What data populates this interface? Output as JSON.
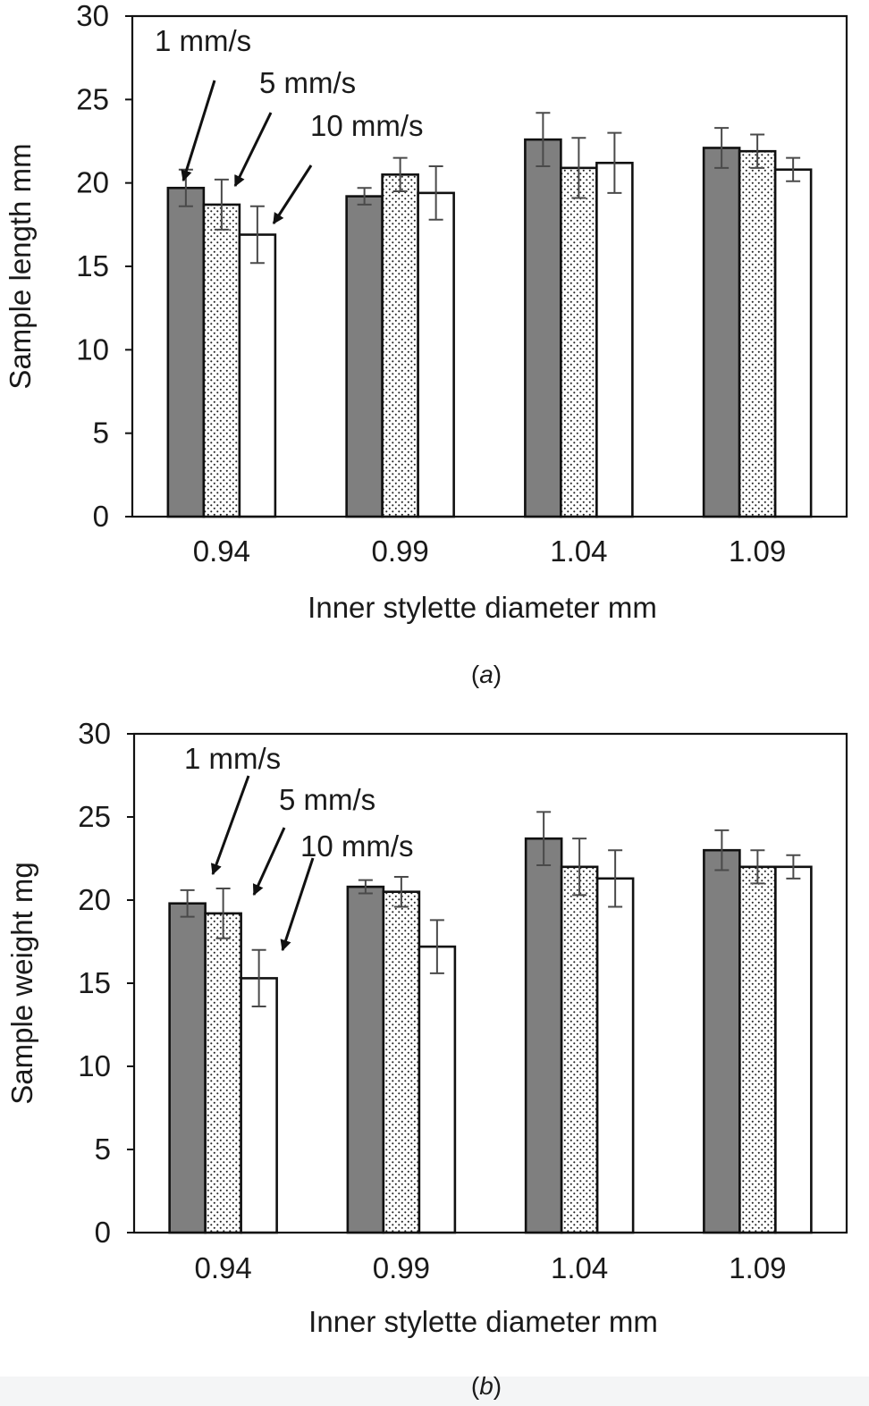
{
  "chart_data": [
    {
      "type": "bar",
      "panel_label": "a",
      "categories": [
        "0.94",
        "0.99",
        "1.04",
        "1.09"
      ],
      "series": [
        {
          "name": "1 mm/s",
          "values": [
            19.7,
            19.2,
            22.6,
            22.1
          ],
          "errors": [
            1.1,
            0.5,
            1.6,
            1.2
          ],
          "fill": "dark-gray"
        },
        {
          "name": "5 mm/s",
          "values": [
            18.7,
            20.5,
            20.9,
            21.9
          ],
          "errors": [
            1.5,
            1.0,
            1.8,
            1.0
          ],
          "fill": "dotted"
        },
        {
          "name": "10 mm/s",
          "values": [
            16.9,
            19.4,
            21.2,
            20.8
          ],
          "errors": [
            1.7,
            1.6,
            1.8,
            0.7
          ],
          "fill": "white"
        }
      ],
      "xlabel": "Inner stylette diameter   mm",
      "ylabel": "Sample length   mm",
      "ylim": [
        0,
        30
      ],
      "yticks": [
        "0",
        "5",
        "10",
        "15",
        "20",
        "25",
        "30"
      ],
      "grid": false,
      "annotations": [
        "1 mm/s",
        "5 mm/s",
        "10 mm/s"
      ]
    },
    {
      "type": "bar",
      "panel_label": "b",
      "categories": [
        "0.94",
        "0.99",
        "1.04",
        "1.09"
      ],
      "series": [
        {
          "name": "1 mm/s",
          "values": [
            19.8,
            20.8,
            23.7,
            23.0
          ],
          "errors": [
            0.8,
            0.4,
            1.6,
            1.2
          ],
          "fill": "dark-gray"
        },
        {
          "name": "5 mm/s",
          "values": [
            19.2,
            20.5,
            22.0,
            22.0
          ],
          "errors": [
            1.5,
            0.9,
            1.7,
            1.0
          ],
          "fill": "dotted"
        },
        {
          "name": "10 mm/s",
          "values": [
            15.3,
            17.2,
            21.3,
            22.0
          ],
          "errors": [
            1.7,
            1.6,
            1.7,
            0.7
          ],
          "fill": "white"
        }
      ],
      "xlabel": "Inner stylette diameter   mm",
      "ylabel": "Sample weight   mg",
      "ylim": [
        0,
        30
      ],
      "yticks": [
        "0",
        "5",
        "10",
        "15",
        "20",
        "25",
        "30"
      ],
      "grid": false,
      "annotations": [
        "1 mm/s",
        "5 mm/s",
        "10 mm/s"
      ]
    }
  ],
  "colors": {
    "bar_dark": "#7f7f7f",
    "bar_white": "#ffffff",
    "dots": "#222222",
    "axis": "#111111",
    "error_bar": "#4a4a4a",
    "footer_strip": "#f4f5f6"
  }
}
